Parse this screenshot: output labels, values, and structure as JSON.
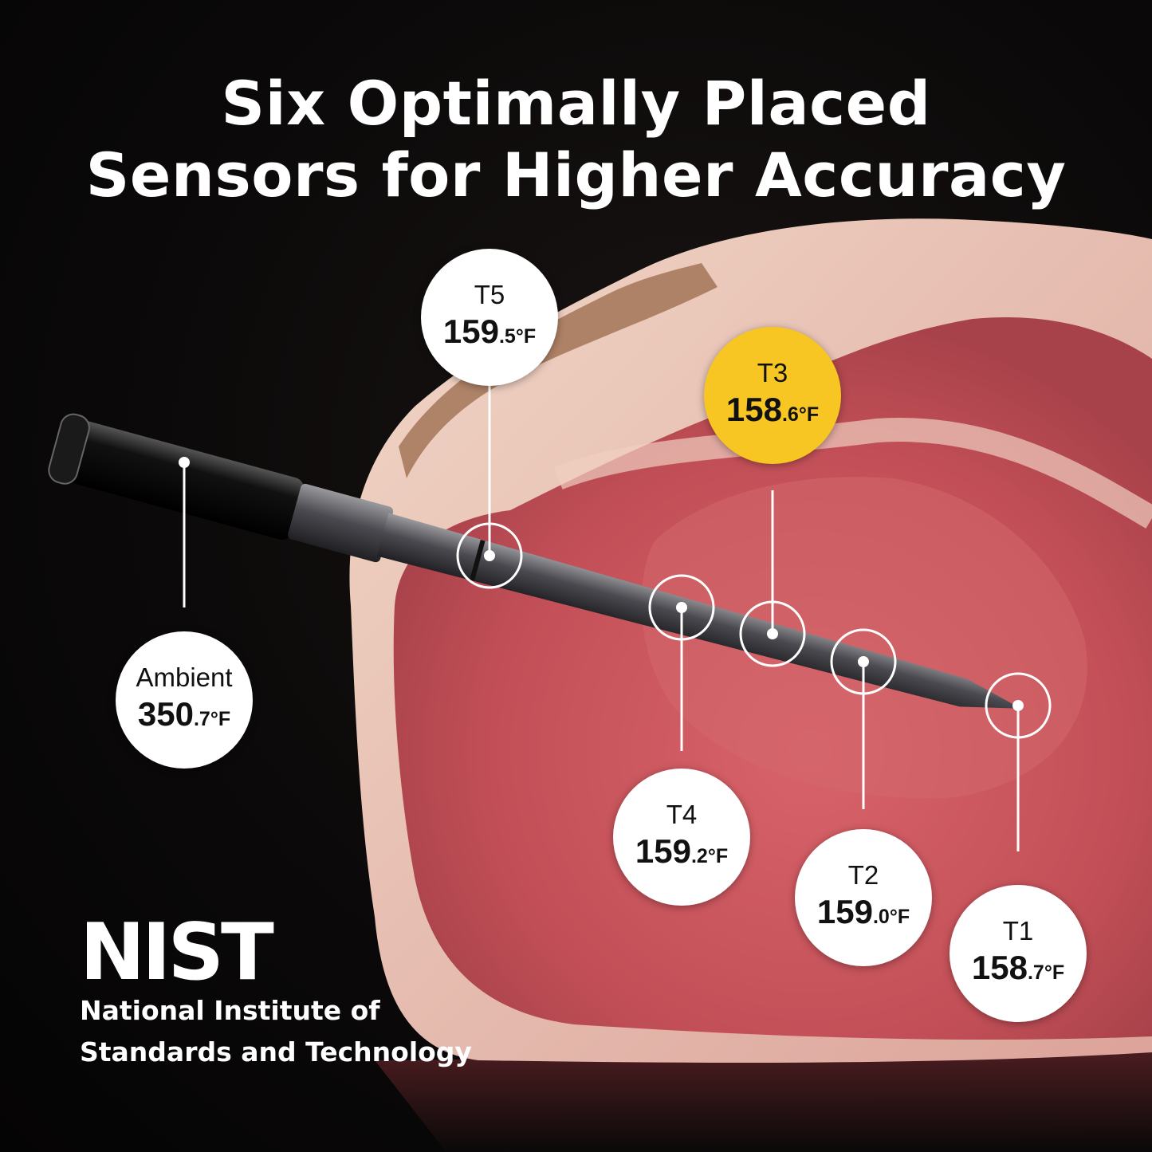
{
  "headline": {
    "line1": "Six Optimally Placed",
    "line2": "Sensors for Higher Accuracy"
  },
  "sensors": [
    {
      "label": "T5",
      "whole": "159",
      "decimal": ".5",
      "unit": "°F",
      "highlighted": false
    },
    {
      "label": "T3",
      "whole": "158",
      "decimal": ".6",
      "unit": "°F",
      "highlighted": true
    },
    {
      "label": "Ambient",
      "whole": "350",
      "decimal": ".7",
      "unit": "°F",
      "highlighted": false
    },
    {
      "label": "T4",
      "whole": "159",
      "decimal": ".2",
      "unit": "°F",
      "highlighted": false
    },
    {
      "label": "T2",
      "whole": "159",
      "decimal": ".0",
      "unit": "°F",
      "highlighted": false
    },
    {
      "label": "T1",
      "whole": "158",
      "decimal": ".7",
      "unit": "°F",
      "highlighted": false
    }
  ],
  "logo": {
    "mark": "NIST",
    "line1": "National Institute of",
    "line2": "Standards and Technology"
  },
  "colors": {
    "background": "#0b0909",
    "highlight": "#f7c623",
    "bubble": "#ffffff",
    "meat": "#c9545a",
    "fat": "#e8c2b2"
  }
}
